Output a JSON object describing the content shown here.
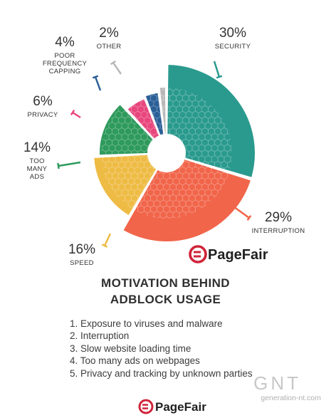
{
  "chart_data": {
    "type": "pie",
    "title": "MOTIVATION BEHIND ADBLOCK USAGE",
    "slices": [
      {
        "label": "SECURITY",
        "value": 30,
        "pct_label": "30%",
        "color": "#2a9a8e"
      },
      {
        "label": "INTERRUPTION",
        "value": 29,
        "pct_label": "29%",
        "color": "#f1654a"
      },
      {
        "label": "SPEED",
        "value": 16,
        "pct_label": "16%",
        "color": "#eebb44"
      },
      {
        "label": "TOO MANY ADS",
        "value": 14,
        "pct_label": "14%",
        "color": "#2e9a5c"
      },
      {
        "label": "PRIVACY",
        "value": 6,
        "pct_label": "6%",
        "color": "#e8467c"
      },
      {
        "label": "POOR FREQUENCY CAPPING",
        "value": 4,
        "pct_label": "4%",
        "color": "#2b5f97"
      },
      {
        "label": "OTHER",
        "value": 2,
        "pct_label": "2%",
        "color": "#b8b8b8"
      }
    ]
  },
  "title_lines": [
    "MOTIVATION BEHIND",
    "ADBLOCK USAGE"
  ],
  "legend_items": [
    "1. Exposure to viruses and malware",
    "2. Interruption",
    "3. Slow website loading time",
    "4. Too many ads on webpages",
    "5. Privacy and tracking by unknown parties"
  ],
  "brand": {
    "name": "PageFair",
    "logo_color": "#d0243a"
  },
  "watermark": {
    "text": "GNT",
    "site": "generation-nt.com"
  }
}
